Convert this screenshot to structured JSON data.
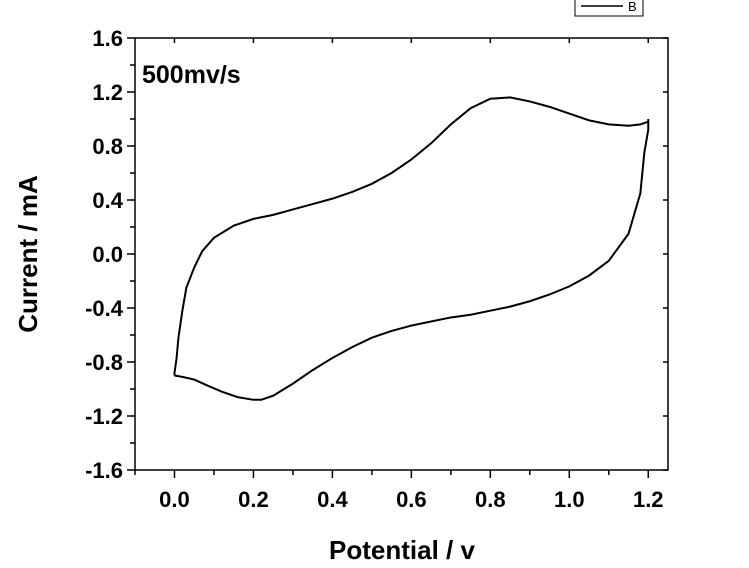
{
  "chart_data": {
    "type": "line",
    "title": "",
    "annotation": "500mv/s",
    "xlabel": "Potential / v",
    "ylabel": "Current / mA",
    "xlim": [
      -0.1,
      1.25
    ],
    "ylim": [
      -1.6,
      1.6
    ],
    "x_ticks": [
      "0.0",
      "0.2",
      "0.4",
      "0.6",
      "0.8",
      "1.0",
      "1.2"
    ],
    "x_tick_values": [
      0.0,
      0.2,
      0.4,
      0.6,
      0.8,
      1.0,
      1.2
    ],
    "y_ticks": [
      "1.6",
      "1.2",
      "0.8",
      "0.4",
      "0.0",
      "-0.4",
      "-0.8",
      "-1.2",
      "-1.6"
    ],
    "y_tick_values": [
      1.6,
      1.2,
      0.8,
      0.4,
      0.0,
      -0.4,
      -0.8,
      -1.2,
      -1.6
    ],
    "grid": false,
    "legend_position": "top-right",
    "series": [
      {
        "name": "B",
        "color": "#000000",
        "x": [
          0.0,
          0.02,
          0.05,
          0.08,
          0.12,
          0.16,
          0.2,
          0.22,
          0.25,
          0.3,
          0.35,
          0.4,
          0.45,
          0.5,
          0.55,
          0.6,
          0.65,
          0.7,
          0.75,
          0.8,
          0.85,
          0.9,
          0.95,
          1.0,
          1.05,
          1.1,
          1.15,
          1.18,
          1.19,
          1.2,
          1.2,
          1.2,
          1.19,
          1.18,
          1.15,
          1.1,
          1.05,
          1.0,
          0.95,
          0.9,
          0.85,
          0.8,
          0.75,
          0.7,
          0.65,
          0.6,
          0.55,
          0.5,
          0.45,
          0.4,
          0.35,
          0.3,
          0.25,
          0.2,
          0.15,
          0.1,
          0.07,
          0.05,
          0.03,
          0.02,
          0.01,
          0.005,
          0.0,
          0.0
        ],
        "y": [
          -0.9,
          -0.91,
          -0.93,
          -0.97,
          -1.02,
          -1.06,
          -1.08,
          -1.08,
          -1.05,
          -0.96,
          -0.86,
          -0.77,
          -0.69,
          -0.62,
          -0.57,
          -0.53,
          -0.5,
          -0.47,
          -0.45,
          -0.42,
          -0.39,
          -0.35,
          -0.3,
          -0.24,
          -0.16,
          -0.05,
          0.15,
          0.45,
          0.75,
          0.92,
          1.0,
          0.98,
          0.97,
          0.96,
          0.95,
          0.96,
          0.99,
          1.04,
          1.09,
          1.13,
          1.16,
          1.15,
          1.08,
          0.96,
          0.82,
          0.7,
          0.6,
          0.52,
          0.46,
          0.41,
          0.37,
          0.33,
          0.29,
          0.26,
          0.21,
          0.12,
          0.02,
          -0.1,
          -0.25,
          -0.42,
          -0.62,
          -0.78,
          -0.88,
          -0.9
        ]
      }
    ]
  }
}
